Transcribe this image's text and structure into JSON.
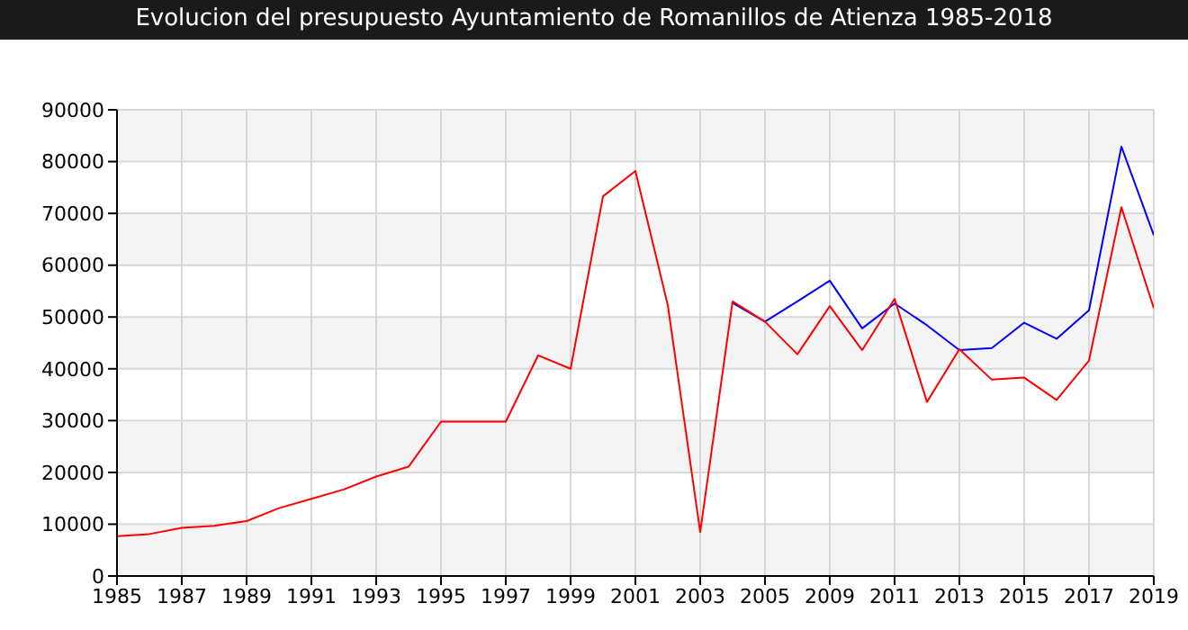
{
  "chart_data": {
    "type": "line",
    "title": "Evolucion del presupuesto Ayuntamiento de Romanillos de Atienza 1985-2018",
    "categories": [
      "1985",
      null,
      "1987",
      null,
      "1989",
      null,
      "1991",
      null,
      "1993",
      null,
      "1995",
      null,
      "1997",
      null,
      "1999",
      null,
      "2001",
      null,
      "2003",
      null,
      "2005",
      null,
      "2009",
      null,
      "2011",
      null,
      "2013",
      null,
      "2015",
      null,
      "2017",
      null,
      "2019"
    ],
    "series": [
      {
        "color": "#0000ff",
        "values": [
          null,
          null,
          null,
          null,
          null,
          null,
          null,
          null,
          null,
          null,
          null,
          null,
          null,
          null,
          null,
          null,
          null,
          null,
          null,
          52700,
          49100,
          53000,
          57000,
          47800,
          52600,
          48400,
          43600,
          44000,
          48900,
          45800,
          51300,
          82900,
          65800
        ]
      },
      {
        "color": "#ff0000",
        "values": [
          7700,
          8100,
          9300,
          9700,
          10600,
          13100,
          14900,
          16700,
          19200,
          21100,
          29800,
          29800,
          29800,
          42600,
          40000,
          73300,
          78200,
          52300,
          8500,
          53000,
          49100,
          42800,
          52100,
          43600,
          53500,
          33600,
          43800,
          37900,
          38300,
          34000,
          41600,
          71200,
          51700
        ]
      }
    ],
    "ylim": [
      0,
      90000
    ],
    "yticks": [
      0,
      10000,
      20000,
      30000,
      40000,
      50000,
      60000,
      70000,
      80000,
      90000
    ],
    "grid": true,
    "marker": "none",
    "line_style": "solid"
  }
}
